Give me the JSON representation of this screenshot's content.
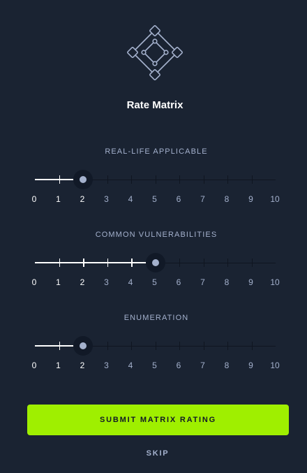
{
  "title": "Rate Matrix",
  "colors": {
    "background": "#1a2332",
    "accent": "#9fef00",
    "muted_text": "#a4b1cd",
    "thumb": "#a4b1cd",
    "track": "#0f1520"
  },
  "icon": "matrix-diamond-icon",
  "scale": {
    "min": 0,
    "max": 10,
    "labels": [
      "0",
      "1",
      "2",
      "3",
      "4",
      "5",
      "6",
      "7",
      "8",
      "9",
      "10"
    ]
  },
  "ratings": [
    {
      "label": "REAL-LIFE APPLICABLE",
      "value": 2
    },
    {
      "label": "COMMON VULNERABILITIES",
      "value": 5
    },
    {
      "label": "ENUMERATION",
      "value": 2
    }
  ],
  "submit_label": "SUBMIT MATRIX RATING",
  "skip_label": "SKIP"
}
